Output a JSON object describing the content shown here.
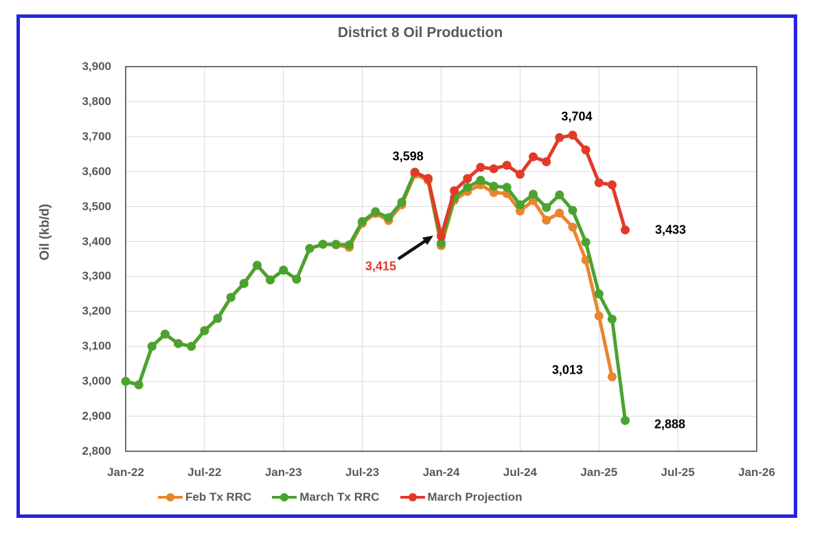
{
  "frame": {
    "border_color": "#2525DF"
  },
  "styles": {
    "text_color": "#595959",
    "gridline_color": "#D9D9D9",
    "plot_border_color": "#3F3F3F",
    "arrow_color": "#111111"
  },
  "chart_data": {
    "type": "line",
    "title": "District 8 Oil Production",
    "xlabel": "",
    "ylabel": "Oil (kb/d)",
    "ylim": [
      2800,
      3900
    ],
    "y_tick_step": 100,
    "grid": true,
    "legend_position": "bottom",
    "x_axis_unit": "month",
    "x_range_months": 48,
    "x_tick_labels": [
      "Jan-22",
      "Jul-22",
      "Jan-23",
      "Jul-23",
      "Jan-24",
      "Jul-24",
      "Jan-25",
      "Jul-25",
      "Jan-26"
    ],
    "x_tick_month_indices": [
      0,
      6,
      12,
      18,
      24,
      30,
      36,
      42,
      48
    ],
    "y_tick_labels": [
      "3,900",
      "3,800",
      "3,700",
      "3,600",
      "3,500",
      "3,400",
      "3,300",
      "3,200",
      "3,100",
      "3,000",
      "2,900",
      "2,800"
    ],
    "y_tick_values": [
      3900,
      3800,
      3700,
      3600,
      3500,
      3400,
      3300,
      3200,
      3100,
      3000,
      2900,
      2800
    ],
    "series": [
      {
        "name": "Feb Tx RRC",
        "color": "#E8862D",
        "start_month": "Jan-22",
        "start_month_index": 0,
        "values": [
          3000,
          2990,
          3100,
          3135,
          3108,
          3100,
          3145,
          3180,
          3240,
          3280,
          3332,
          3290,
          3318,
          3292,
          3380,
          3392,
          3390,
          3383,
          3452,
          3480,
          3460,
          3505,
          3592,
          3575,
          3388,
          3518,
          3543,
          3562,
          3540,
          3537,
          3487,
          3517,
          3461,
          3481,
          3441,
          3347,
          3187,
          3013
        ]
      },
      {
        "name": "March Tx RRC",
        "color": "#4AA32F",
        "start_month": "Jan-22",
        "start_month_index": 0,
        "values": [
          3000,
          2990,
          3100,
          3135,
          3108,
          3100,
          3145,
          3180,
          3240,
          3280,
          3332,
          3290,
          3318,
          3292,
          3380,
          3392,
          3392,
          3390,
          3457,
          3485,
          3468,
          3512,
          3598,
          3580,
          3395,
          3525,
          3555,
          3575,
          3558,
          3555,
          3505,
          3535,
          3497,
          3533,
          3489,
          3398,
          3250,
          3178,
          2888
        ]
      },
      {
        "name": "March Projection",
        "color": "#E23A28",
        "start_month": "Nov-23",
        "start_month_index": 22,
        "values": [
          3598,
          3580,
          3415,
          3545,
          3580,
          3612,
          3608,
          3618,
          3592,
          3642,
          3628,
          3697,
          3704,
          3662,
          3568,
          3562,
          3433
        ]
      }
    ],
    "annotations": [
      {
        "id": "peak-march-rrc",
        "text": "3,598",
        "color": "#000000",
        "month_index": 22,
        "value": 3598
      },
      {
        "id": "dip-projection",
        "text": "3,415",
        "color": "#E23A28",
        "month_index": 24,
        "value": 3415,
        "arrow": true
      },
      {
        "id": "peak-projection",
        "text": "3,704",
        "color": "#000000",
        "month_index": 34,
        "value": 3704
      },
      {
        "id": "end-projection",
        "text": "3,433",
        "color": "#000000",
        "month_index": 38,
        "value": 3433
      },
      {
        "id": "end-feb-rrc",
        "text": "3,013",
        "color": "#000000",
        "month_index": 37,
        "value": 3013
      },
      {
        "id": "end-march-rrc",
        "text": "2,888",
        "color": "#000000",
        "month_index": 38,
        "value": 2888
      }
    ]
  }
}
